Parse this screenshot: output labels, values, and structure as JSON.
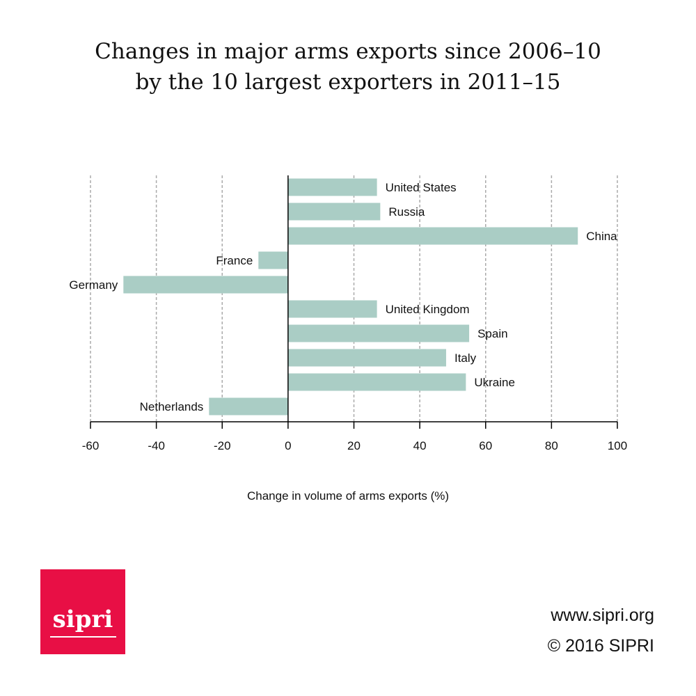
{
  "title_lines": [
    "Changes in major arms exports since 2006–10",
    "by the 10 largest exporters in 2011–15"
  ],
  "chart_data": {
    "type": "bar",
    "orientation": "horizontal",
    "title": "Changes in major arms exports since 2006–10 by the 10 largest exporters in 2011–15",
    "xlabel": "Change in volume of arms exports (%)",
    "ylabel": "",
    "xlim": [
      -60,
      100
    ],
    "xticks": [
      -60,
      -40,
      -20,
      0,
      20,
      40,
      60,
      80,
      100
    ],
    "grid": "vertical dashed",
    "bar_color": "#aacdc5",
    "categories": [
      "United States",
      "Russia",
      "China",
      "France",
      "Germany",
      "United Kingdom",
      "Spain",
      "Italy",
      "Ukraine",
      "Netherlands"
    ],
    "values": [
      27,
      28,
      88,
      -9,
      -50,
      27,
      55,
      48,
      54,
      -24
    ]
  },
  "logo": {
    "text": "sipri",
    "color": "#e80f45"
  },
  "credits": {
    "url": "www.sipri.org",
    "copyright": "© 2016 SIPRI"
  }
}
